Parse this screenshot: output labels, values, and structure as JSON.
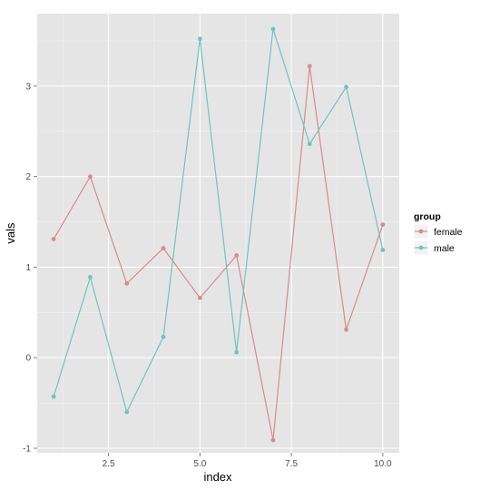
{
  "chart_data": {
    "type": "line",
    "xlabel": "index",
    "ylabel": "vals",
    "xlim": [
      0.55,
      10.45
    ],
    "ylim": [
      -1.05,
      3.8
    ],
    "x_ticks": [
      2.5,
      5.0,
      7.5,
      10.0
    ],
    "x_tick_labels": [
      "2.5",
      "5.0",
      "7.5",
      "10.0"
    ],
    "x_minor_ticks": [
      1.25,
      3.75,
      6.25,
      8.75
    ],
    "y_ticks": [
      -1,
      0,
      1,
      2,
      3
    ],
    "y_tick_labels": [
      "-1",
      "0",
      "1",
      "2",
      "3"
    ],
    "y_minor_ticks": [
      -0.5,
      0.5,
      1.5,
      2.5,
      3.5
    ],
    "grid": true,
    "legend": {
      "title": "group",
      "position": "right"
    },
    "background_color": "#e5e5e5",
    "grid_color": "#ffffff",
    "series": [
      {
        "name": "female",
        "color": "#d98b8b",
        "x": [
          1,
          2,
          3,
          4,
          5,
          6,
          7,
          8,
          9,
          10
        ],
        "values": [
          1.31,
          2.0,
          0.82,
          1.21,
          0.66,
          1.13,
          -0.91,
          3.22,
          0.31,
          1.47
        ]
      },
      {
        "name": "male",
        "color": "#6fc4c0",
        "x": [
          1,
          2,
          3,
          4,
          5,
          6,
          7,
          8,
          9,
          10
        ],
        "values": [
          -0.43,
          0.89,
          -0.6,
          0.23,
          3.52,
          0.06,
          3.63,
          2.36,
          2.99,
          1.19
        ]
      }
    ]
  }
}
